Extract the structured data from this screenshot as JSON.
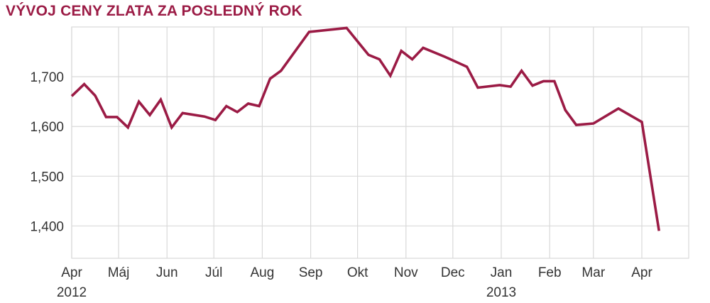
{
  "title": "VÝVOJ CENY ZLATA ZA POSLEDNÝ ROK",
  "colors": {
    "line": "#9b1b45",
    "grid": "#d9d9d9",
    "title": "#9b1b45"
  },
  "chart_data": {
    "type": "line",
    "title": "VÝVOJ CENY ZLATA ZA POSLEDNÝ ROK",
    "xlabel": "",
    "ylabel": "",
    "grid": true,
    "x_ticks": [
      "Apr",
      "Máj",
      "Jun",
      "Júl",
      "Aug",
      "Sep",
      "Okt",
      "Nov",
      "Dec",
      "Jan",
      "Feb",
      "Mar",
      "Apr"
    ],
    "x_year_labels": [
      {
        "label": "2012",
        "at": "Apr"
      },
      {
        "label": "2013",
        "at": "Jan"
      }
    ],
    "y_ticks": [
      "1,400",
      "1,500",
      "1,600",
      "1,700"
    ],
    "ylim": [
      1335,
      1800
    ],
    "series": [
      {
        "color": "#9b1b45",
        "points": [
          [
            "2012-04-01",
            1661
          ],
          [
            "2012-04-09",
            1685
          ],
          [
            "2012-04-16",
            1662
          ],
          [
            "2012-04-23",
            1619
          ],
          [
            "2012-04-30",
            1619
          ],
          [
            "2012-05-07",
            1598
          ],
          [
            "2012-05-14",
            1650
          ],
          [
            "2012-05-21",
            1623
          ],
          [
            "2012-05-28",
            1654
          ],
          [
            "2012-06-04",
            1598
          ],
          [
            "2012-06-11",
            1627
          ],
          [
            "2012-06-25",
            1620
          ],
          [
            "2012-07-02",
            1613
          ],
          [
            "2012-07-09",
            1641
          ],
          [
            "2012-07-16",
            1629
          ],
          [
            "2012-07-23",
            1646
          ],
          [
            "2012-07-30",
            1641
          ],
          [
            "2012-08-06",
            1696
          ],
          [
            "2012-08-13",
            1712
          ],
          [
            "2012-08-31",
            1790
          ],
          [
            "2012-09-24",
            1798
          ],
          [
            "2012-10-08",
            1744
          ],
          [
            "2012-10-15",
            1735
          ],
          [
            "2012-10-22",
            1702
          ],
          [
            "2012-10-29",
            1752
          ],
          [
            "2012-11-05",
            1735
          ],
          [
            "2012-11-12",
            1758
          ],
          [
            "2012-11-26",
            1740
          ],
          [
            "2012-12-10",
            1720
          ],
          [
            "2012-12-17",
            1678
          ],
          [
            "2012-12-31",
            1683
          ],
          [
            "2013-01-07",
            1680
          ],
          [
            "2013-01-14",
            1712
          ],
          [
            "2013-01-21",
            1682
          ],
          [
            "2013-01-28",
            1691
          ],
          [
            "2013-02-04",
            1691
          ],
          [
            "2013-02-11",
            1633
          ],
          [
            "2013-02-18",
            1603
          ],
          [
            "2013-03-01",
            1606
          ],
          [
            "2013-03-17",
            1636
          ],
          [
            "2013-04-01",
            1609
          ],
          [
            "2013-04-12",
            1390
          ]
        ]
      }
    ]
  }
}
